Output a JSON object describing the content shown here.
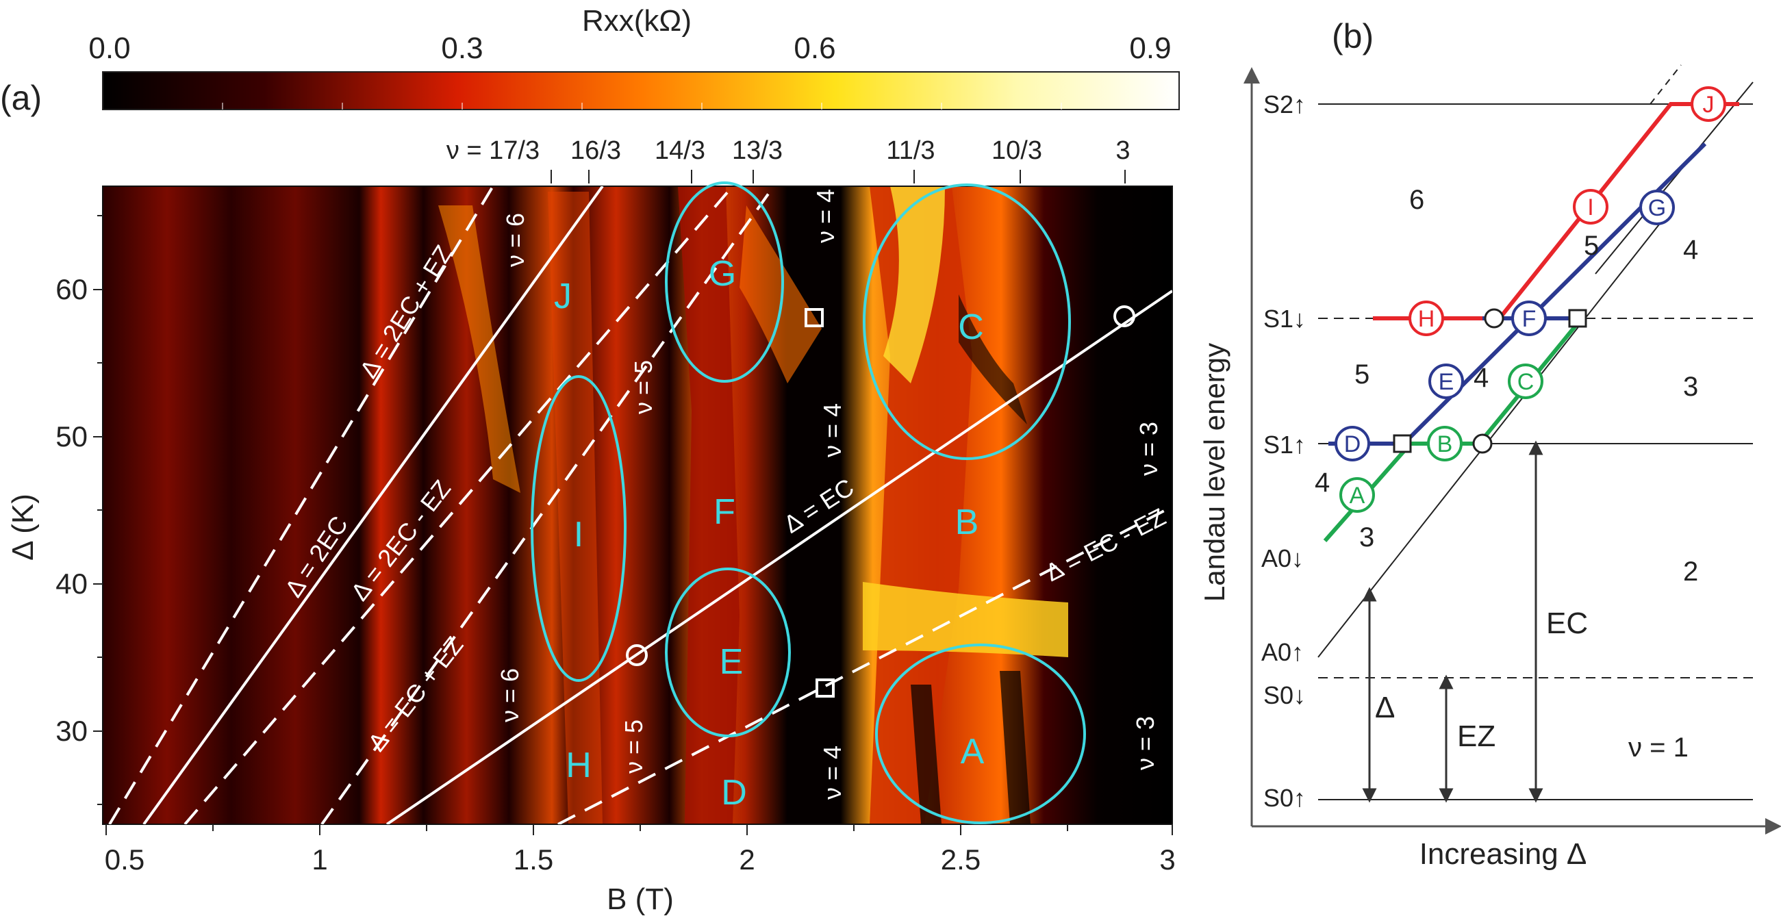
{
  "figure": {
    "panel_a_label": "(a)",
    "panel_b_label": "(b)"
  },
  "colorbar": {
    "title": "Rxx(kΩ)",
    "ticks": [
      "0.0",
      "0.3",
      "0.6",
      "0.9"
    ]
  },
  "panel_a": {
    "xlabel": "B (T)",
    "ylabel": "Δ (K)",
    "x_ticks": [
      "0.5",
      "1",
      "1.5",
      "2",
      "2.5",
      "3"
    ],
    "y_ticks": [
      "30",
      "40",
      "50",
      "60"
    ],
    "top_filling_labels": [
      "ν = 17/3",
      "16/3",
      "14/3",
      "13/3",
      "11/3",
      "10/3",
      "3"
    ],
    "line_labels": [
      "Δ = 2EC + EZ",
      "Δ = 2EC",
      "Δ = 2EC - EZ",
      "Δ = EC + EZ",
      "Δ = EC",
      "Δ = EC - EZ"
    ],
    "region_letters": [
      "J",
      "G",
      "C",
      "I",
      "F",
      "B",
      "E",
      "H",
      "D",
      "A"
    ],
    "nu_labels": [
      "ν = 6",
      "ν = 5",
      "ν = 4",
      "ν = 4",
      "ν = 3",
      "ν = 6",
      "ν = 5",
      "ν = 4",
      "ν = 3"
    ]
  },
  "panel_b": {
    "ylabel": "Landau level energy",
    "xlabel": "Increasing Δ",
    "level_labels": [
      "S2↑",
      "S1↓",
      "S1↑",
      "A0↓",
      "A0↑",
      "S0↓",
      "S0↑"
    ],
    "fillings": [
      "6",
      "5",
      "4",
      "5",
      "4",
      "3",
      "4",
      "3",
      "2",
      "ν = 1"
    ],
    "circle_letters": [
      "J",
      "I",
      "G",
      "H",
      "F",
      "E",
      "C",
      "D",
      "B",
      "A"
    ],
    "arrow_labels": [
      "Δ",
      "EZ",
      "EC"
    ],
    "colors": {
      "red": "#e8262b",
      "blue": "#2b3990",
      "green": "#1fa84f"
    }
  }
}
